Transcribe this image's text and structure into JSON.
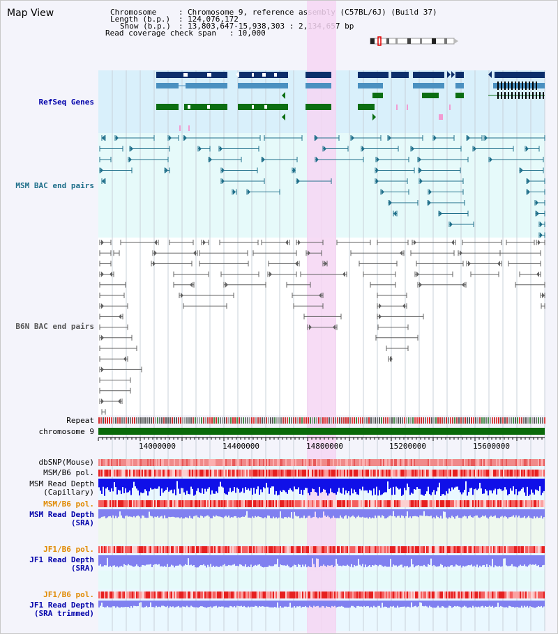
{
  "title": "Map View",
  "header": {
    "chromosome_key": "Chromosome",
    "chromosome_val": "Chromosome 9, reference assembly (C57BL/6J) (Build 37)",
    "length_key": "Length (b.p.)",
    "length_val": "124,076,172",
    "show_key": "Show (b.p.)",
    "show_val": "13,803,647-15,938,303 : 2,134,657 bp",
    "coverage_key": "Read coverage check span",
    "coverage_val": "10,000"
  },
  "tracks": {
    "refseq": "RefSeq Genes",
    "msm_bac": "MSM BAC end pairs",
    "b6n_bac": "B6N BAC end pairs",
    "repeat": "Repeat",
    "chromosome": "chromosome 9",
    "dbsnp": "dbSNP(Mouse)",
    "msm_b6_pol_1": "MSM/B6 pol.",
    "msm_depth_cap_1": "MSM Read Depth",
    "msm_depth_cap_2": "(Capillary)",
    "msm_b6_pol_2": "MSM/B6 pol.",
    "msm_depth_sra_1": "MSM Read Depth",
    "msm_depth_sra_2": "(SRA)",
    "jf1_b6_pol_1": "JF1/B6 pol.",
    "jf1_depth_sra_1": "JF1 Read Depth",
    "jf1_depth_sra_2": "(SRA)",
    "jf1_b6_pol_2": "JF1/B6 pol.",
    "jf1_depth_trim_1": "JF1 Read Depth",
    "jf1_depth_trim_2": "(SRA trimmed)"
  },
  "axis": {
    "ticks": [
      "14000000",
      "14400000",
      "14800000",
      "15200000",
      "15600000"
    ]
  },
  "colors": {
    "refseq_bg": "#d9f0fb",
    "bac_bg": "#e6fafa",
    "highlight": "#f6d6f3",
    "dark_gene": "#0d2f6b",
    "mid_gene": "#4a90c0",
    "green_gene": "#0b6e12",
    "msm_pair": "#1f6f8a",
    "b6n_pair": "#606060",
    "depth_blue": "#1010e8",
    "sra_blue": "#8080f0",
    "pol_red": "#e83030",
    "label_blue": "#0000aa",
    "label_orange": "#e08a00"
  }
}
